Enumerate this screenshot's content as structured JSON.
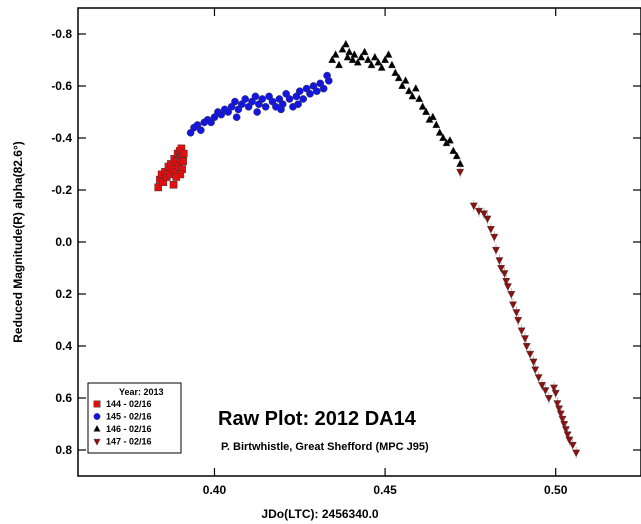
{
  "chart_data": {
    "type": "scatter",
    "title": "Raw Plot: 2012 DA14",
    "subtitle": "P. Birtwhistle, Great Shefford (MPC J95)",
    "xlabel": "JDo(LTC): 2456340.0",
    "ylabel": "Reduced Magnitude(R) alpha(82.6°)",
    "xlim": [
      0.36,
      0.525
    ],
    "ylim": [
      0.9,
      -0.9
    ],
    "y_inverted": true,
    "xticks": [
      0.4,
      0.45,
      0.5
    ],
    "xtick_labels": [
      "0.40",
      "0.45",
      "0.50"
    ],
    "yticks": [
      -0.8,
      -0.6,
      -0.4,
      -0.2,
      0.0,
      0.2,
      0.4,
      0.6,
      0.8
    ],
    "ytick_labels": [
      "-0.8",
      "-0.6",
      "-0.4",
      "-0.2",
      "0.0",
      "0.2",
      "0.4",
      "0.6",
      "0.8"
    ],
    "grid": false,
    "legend_placement": "bottom-left",
    "legend_title": "Year: 2013",
    "series": [
      {
        "name": "144 - 02/16",
        "color": "#e01010",
        "marker": "square",
        "points": [
          [
            0.3835,
            -0.21
          ],
          [
            0.384,
            -0.24
          ],
          [
            0.3845,
            -0.26
          ],
          [
            0.385,
            -0.23
          ],
          [
            0.3855,
            -0.27
          ],
          [
            0.386,
            -0.25
          ],
          [
            0.3865,
            -0.29
          ],
          [
            0.387,
            -0.26
          ],
          [
            0.3872,
            -0.3
          ],
          [
            0.3878,
            -0.28
          ],
          [
            0.3882,
            -0.32
          ],
          [
            0.3885,
            -0.27
          ],
          [
            0.389,
            -0.31
          ],
          [
            0.3892,
            -0.34
          ],
          [
            0.3895,
            -0.29
          ],
          [
            0.3898,
            -0.35
          ],
          [
            0.39,
            -0.32
          ],
          [
            0.3903,
            -0.36
          ],
          [
            0.3905,
            -0.33
          ],
          [
            0.3908,
            -0.31
          ],
          [
            0.3905,
            -0.28
          ],
          [
            0.39,
            -0.26
          ],
          [
            0.391,
            -0.34
          ],
          [
            0.3888,
            -0.25
          ],
          [
            0.388,
            -0.22
          ]
        ]
      },
      {
        "name": "145 - 02/16",
        "color": "#1515e0",
        "marker": "circle",
        "points": [
          [
            0.393,
            -0.42
          ],
          [
            0.394,
            -0.44
          ],
          [
            0.395,
            -0.45
          ],
          [
            0.396,
            -0.43
          ],
          [
            0.397,
            -0.46
          ],
          [
            0.398,
            -0.47
          ],
          [
            0.399,
            -0.46
          ],
          [
            0.4,
            -0.48
          ],
          [
            0.401,
            -0.5
          ],
          [
            0.402,
            -0.49
          ],
          [
            0.403,
            -0.51
          ],
          [
            0.404,
            -0.5
          ],
          [
            0.405,
            -0.52
          ],
          [
            0.406,
            -0.54
          ],
          [
            0.407,
            -0.51
          ],
          [
            0.408,
            -0.53
          ],
          [
            0.409,
            -0.55
          ],
          [
            0.41,
            -0.52
          ],
          [
            0.411,
            -0.54
          ],
          [
            0.412,
            -0.56
          ],
          [
            0.413,
            -0.53
          ],
          [
            0.414,
            -0.55
          ],
          [
            0.415,
            -0.52
          ],
          [
            0.416,
            -0.56
          ],
          [
            0.417,
            -0.54
          ],
          [
            0.418,
            -0.52
          ],
          [
            0.419,
            -0.55
          ],
          [
            0.42,
            -0.53
          ],
          [
            0.421,
            -0.57
          ],
          [
            0.422,
            -0.55
          ],
          [
            0.423,
            -0.52
          ],
          [
            0.424,
            -0.56
          ],
          [
            0.425,
            -0.58
          ],
          [
            0.426,
            -0.55
          ],
          [
            0.427,
            -0.59
          ],
          [
            0.428,
            -0.57
          ],
          [
            0.429,
            -0.6
          ],
          [
            0.43,
            -0.58
          ],
          [
            0.431,
            -0.61
          ],
          [
            0.432,
            -0.59
          ],
          [
            0.433,
            -0.64
          ],
          [
            0.4335,
            -0.62
          ],
          [
            0.4065,
            -0.48
          ],
          [
            0.4125,
            -0.5
          ],
          [
            0.4195,
            -0.51
          ],
          [
            0.4245,
            -0.53
          ]
        ]
      },
      {
        "name": "146 - 02/16",
        "color": "#000000",
        "marker": "triangle-up",
        "points": [
          [
            0.4345,
            -0.7
          ],
          [
            0.4355,
            -0.72
          ],
          [
            0.4365,
            -0.68
          ],
          [
            0.4375,
            -0.74
          ],
          [
            0.4385,
            -0.76
          ],
          [
            0.439,
            -0.71
          ],
          [
            0.4395,
            -0.73
          ],
          [
            0.4405,
            -0.7
          ],
          [
            0.441,
            -0.72
          ],
          [
            0.442,
            -0.69
          ],
          [
            0.443,
            -0.71
          ],
          [
            0.444,
            -0.73
          ],
          [
            0.445,
            -0.7
          ],
          [
            0.446,
            -0.68
          ],
          [
            0.447,
            -0.71
          ],
          [
            0.448,
            -0.69
          ],
          [
            0.449,
            -0.67
          ],
          [
            0.45,
            -0.7
          ],
          [
            0.451,
            -0.72
          ],
          [
            0.452,
            -0.68
          ],
          [
            0.453,
            -0.65
          ],
          [
            0.454,
            -0.63
          ],
          [
            0.455,
            -0.6
          ],
          [
            0.456,
            -0.62
          ],
          [
            0.457,
            -0.58
          ],
          [
            0.458,
            -0.56
          ],
          [
            0.459,
            -0.59
          ],
          [
            0.46,
            -0.55
          ],
          [
            0.461,
            -0.52
          ],
          [
            0.462,
            -0.5
          ],
          [
            0.463,
            -0.47
          ],
          [
            0.464,
            -0.48
          ],
          [
            0.465,
            -0.45
          ],
          [
            0.466,
            -0.42
          ],
          [
            0.467,
            -0.4
          ],
          [
            0.468,
            -0.38
          ],
          [
            0.469,
            -0.39
          ],
          [
            0.47,
            -0.35
          ],
          [
            0.471,
            -0.33
          ],
          [
            0.472,
            -0.3
          ]
        ]
      },
      {
        "name": "147 - 02/16",
        "color": "#8b1010",
        "marker": "triangle-down",
        "points": [
          [
            0.472,
            -0.27
          ],
          [
            0.476,
            -0.14
          ],
          [
            0.4775,
            -0.12
          ],
          [
            0.479,
            -0.11
          ],
          [
            0.48,
            -0.09
          ],
          [
            0.481,
            -0.05
          ],
          [
            0.482,
            -0.02
          ],
          [
            0.4825,
            0.03
          ],
          [
            0.4835,
            0.07
          ],
          [
            0.484,
            0.1
          ],
          [
            0.485,
            0.12
          ],
          [
            0.4855,
            0.15
          ],
          [
            0.486,
            0.17
          ],
          [
            0.487,
            0.2
          ],
          [
            0.4875,
            0.24
          ],
          [
            0.4885,
            0.27
          ],
          [
            0.489,
            0.3
          ],
          [
            0.49,
            0.34
          ],
          [
            0.491,
            0.37
          ],
          [
            0.4915,
            0.4
          ],
          [
            0.4925,
            0.43
          ],
          [
            0.4935,
            0.46
          ],
          [
            0.494,
            0.49
          ],
          [
            0.495,
            0.52
          ],
          [
            0.496,
            0.55
          ],
          [
            0.497,
            0.57
          ],
          [
            0.498,
            0.6
          ],
          [
            0.4995,
            0.56
          ],
          [
            0.5,
            0.58
          ],
          [
            0.5005,
            0.62
          ],
          [
            0.501,
            0.64
          ],
          [
            0.5015,
            0.66
          ],
          [
            0.502,
            0.68
          ],
          [
            0.5025,
            0.7
          ],
          [
            0.503,
            0.72
          ],
          [
            0.5035,
            0.74
          ],
          [
            0.504,
            0.76
          ],
          [
            0.505,
            0.78
          ],
          [
            0.506,
            0.81
          ]
        ]
      }
    ]
  }
}
